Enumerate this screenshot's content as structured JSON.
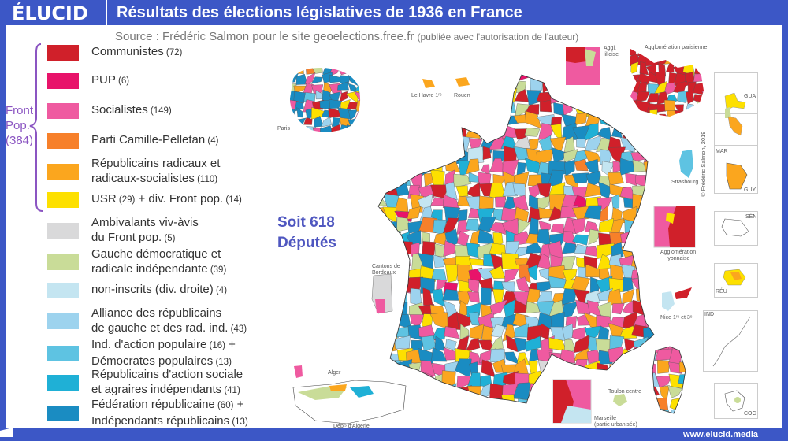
{
  "header": {
    "logo": "ÉLUCID",
    "title": "Résultats des élections législatives de 1936 en France"
  },
  "source": {
    "main": "Source : Frédéric Salmon pour le site geoelections.free.fr",
    "note": "(publiée avec l'autorisation de l'auteur)"
  },
  "front_pop": {
    "line1": "Front",
    "line2": "Pop.",
    "line3": "(384)",
    "color": "#8b55c2"
  },
  "legend": [
    {
      "color": "#d0202a",
      "lines": [
        [
          [
            "Communistes",
            0
          ],
          [
            " (72)",
            1
          ]
        ]
      ]
    },
    {
      "color": "#e8136a",
      "lines": [
        [
          [
            "PUP",
            0
          ],
          [
            " (6)",
            1
          ]
        ]
      ]
    },
    {
      "color": "#ef5aa0",
      "lines": [
        [
          [
            "Socialistes",
            0
          ],
          [
            " (149)",
            1
          ]
        ]
      ]
    },
    {
      "color": "#f7802a",
      "lines": [
        [
          [
            "Parti Camille-Pelletan",
            0
          ],
          [
            " (4)",
            1
          ]
        ]
      ]
    },
    {
      "color": "#fba61e",
      "lines": [
        [
          [
            "Républicains radicaux et",
            0
          ]
        ],
        [
          [
            "radicaux-socialistes",
            0
          ],
          [
            " (110)",
            1
          ]
        ]
      ]
    },
    {
      "color": "#fde000",
      "lines": [
        [
          [
            "USR",
            0
          ],
          [
            " (29)",
            1
          ],
          [
            " + div. Front pop.",
            0
          ],
          [
            " (14)",
            1
          ]
        ]
      ]
    },
    {
      "color": "#d9d9da",
      "lines": [
        [
          [
            "Ambivalants viv-àvis",
            0
          ]
        ],
        [
          [
            "du Front pop.",
            0
          ],
          [
            " (5)",
            1
          ]
        ]
      ]
    },
    {
      "color": "#c9dc98",
      "lines": [
        [
          [
            "Gauche démocratique et",
            0
          ]
        ],
        [
          [
            "radicale indépendante",
            0
          ],
          [
            " (39)",
            1
          ]
        ]
      ]
    },
    {
      "color": "#c4e5f1",
      "lines": [
        [
          [
            "non-inscrits (div. droite)",
            0
          ],
          [
            " (4)",
            1
          ]
        ]
      ]
    },
    {
      "color": "#9dd3ee",
      "lines": [
        [
          [
            "Alliance des républicains",
            0
          ]
        ],
        [
          [
            "de gauche et des rad. ind.",
            0
          ],
          [
            " (43)",
            1
          ]
        ]
      ]
    },
    {
      "color": "#5ec3e2",
      "lines": [
        [
          [
            "Ind. d'action populaire",
            0
          ],
          [
            " (16)",
            1
          ],
          [
            " +",
            0
          ]
        ],
        [
          [
            "Démocrates populaires",
            0
          ],
          [
            " (13)",
            1
          ]
        ]
      ]
    },
    {
      "color": "#1fb0d6",
      "lines": [
        [
          [
            "Républicains d'action sociale",
            0
          ]
        ],
        [
          [
            "et agraires indépendants",
            0
          ],
          [
            " (41)",
            1
          ]
        ]
      ]
    },
    {
      "color": "#1a8cc2",
      "lines": [
        [
          [
            "Fédération républicaine",
            0
          ],
          [
            " (60)",
            1
          ],
          [
            " +",
            0
          ]
        ],
        [
          [
            "Indépendants républicains",
            0
          ],
          [
            " (13)",
            1
          ]
        ]
      ]
    }
  ],
  "total": {
    "line1": "Soit 618",
    "line2": "Députés"
  },
  "map_labels": {
    "paris": "Paris",
    "le_havre": "Le Havre 1ʳᵉ",
    "rouen": "Rouen",
    "lille": "Aggl. lilloise",
    "agglo_paris": "Agglomération parisienne",
    "gua": "GUA",
    "mar": "MAR",
    "guy": "GUY",
    "strasbourg": "Strasbourg",
    "copyright": "© Frédéric Salmon, 2019",
    "lyon1": "Agglomération",
    "lyon2": "lyonnaise",
    "sen": "SÉN",
    "reu": "RÉU",
    "ind": "IND",
    "coc": "COC",
    "nice": "Nice 1ʳᵉ et 3ᵉ",
    "toulon": "Toulon centre",
    "marseille1": "Marseille",
    "marseille2": "(partie urbanisée)",
    "bordeaux1": "Cantons de",
    "bordeaux2": "Bordeaux",
    "alger": "Alger",
    "algerie": "Dépᵗˢ d'Algérie"
  },
  "footer": {
    "url": "www.elucid.media"
  },
  "colors": {
    "frame": "#3c57c6",
    "text": "#333333"
  }
}
